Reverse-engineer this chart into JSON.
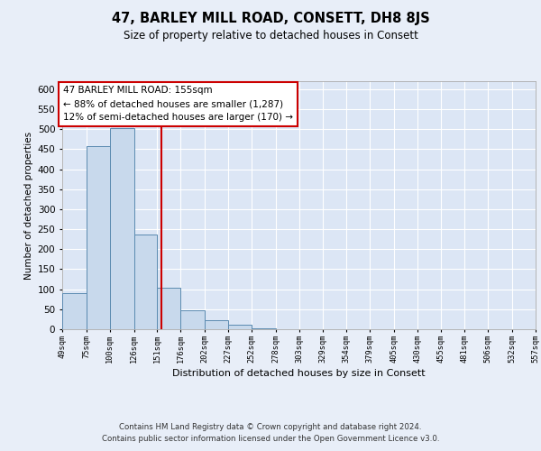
{
  "title": "47, BARLEY MILL ROAD, CONSETT, DH8 8JS",
  "subtitle": "Size of property relative to detached houses in Consett",
  "xlabel": "Distribution of detached houses by size in Consett",
  "ylabel": "Number of detached properties",
  "bins": [
    49,
    75,
    100,
    126,
    151,
    176,
    202,
    227,
    252,
    278,
    303,
    329,
    354,
    379,
    405,
    430,
    455,
    481,
    506,
    532,
    557
  ],
  "counts": [
    90,
    457,
    503,
    237,
    104,
    48,
    22,
    12,
    2,
    1,
    0,
    0,
    0,
    0,
    0,
    0,
    0,
    0,
    0,
    1
  ],
  "bar_color": "#c8d9ec",
  "bar_edge_color": "#5a8ab0",
  "property_line_x": 155,
  "property_line_color": "#cc0000",
  "ylim": [
    0,
    620
  ],
  "yticks": [
    0,
    50,
    100,
    150,
    200,
    250,
    300,
    350,
    400,
    450,
    500,
    550,
    600
  ],
  "annotation_title": "47 BARLEY MILL ROAD: 155sqm",
  "annotation_line1": "← 88% of detached houses are smaller (1,287)",
  "annotation_line2": "12% of semi-detached houses are larger (170) →",
  "annotation_box_color": "#ffffff",
  "annotation_box_edge": "#cc0000",
  "footer_line1": "Contains HM Land Registry data © Crown copyright and database right 2024.",
  "footer_line2": "Contains public sector information licensed under the Open Government Licence v3.0.",
  "background_color": "#e8eef8",
  "plot_background_color": "#dce6f5",
  "grid_color": "#ffffff",
  "tick_labels": [
    "49sqm",
    "75sqm",
    "100sqm",
    "126sqm",
    "151sqm",
    "176sqm",
    "202sqm",
    "227sqm",
    "252sqm",
    "278sqm",
    "303sqm",
    "329sqm",
    "354sqm",
    "379sqm",
    "405sqm",
    "430sqm",
    "455sqm",
    "481sqm",
    "506sqm",
    "532sqm",
    "557sqm"
  ]
}
